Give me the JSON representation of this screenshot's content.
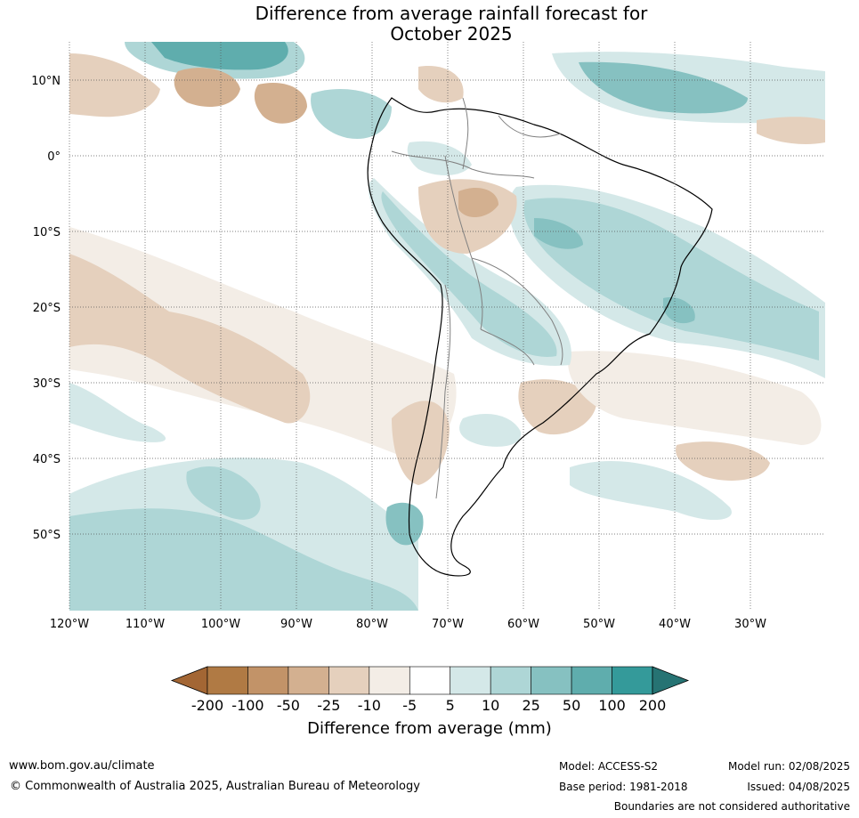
{
  "title_line1": "Difference from average rainfall forecast for",
  "title_line2": "October 2025",
  "lat_labels": [
    "10°N",
    "0°",
    "10°S",
    "20°S",
    "30°S",
    "40°S",
    "50°S"
  ],
  "lon_labels": [
    "120°W",
    "110°W",
    "100°W",
    "90°W",
    "80°W",
    "70°W",
    "60°W",
    "50°W",
    "40°W",
    "30°W"
  ],
  "colorbar": {
    "title": "Difference from average (mm)",
    "ticks": [
      "-200",
      "-100",
      "-50",
      "-25",
      "-10",
      "-5",
      "5",
      "10",
      "25",
      "50",
      "100",
      "200"
    ],
    "colors": [
      "#a36634",
      "#b07a44",
      "#c29368",
      "#d3b090",
      "#e5d0bd",
      "#f3ede6",
      "#ffffff",
      "#d4e8e8",
      "#aed6d6",
      "#86c1c1",
      "#5fadad",
      "#349a9a",
      "#267373"
    ]
  },
  "footer": {
    "url": "www.bom.gov.au/climate",
    "copyright": "© Commonwealth of Australia 2025, Australian Bureau of Meteorology",
    "model": "Model: ACCESS-S2",
    "base_period": "Base period: 1981-2018",
    "model_run": "Model run: 02/08/2025",
    "issued": "Issued: 04/08/2025",
    "disclaimer": "Boundaries are not considered authoritative"
  }
}
